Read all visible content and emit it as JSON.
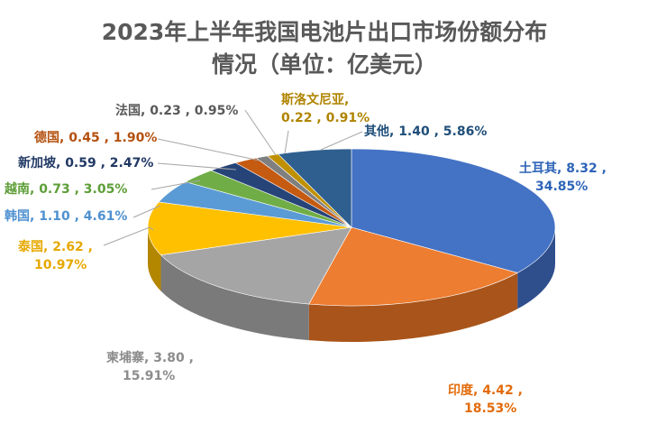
{
  "chart_data": {
    "type": "pie",
    "variant": "3d",
    "title": "2023年上半年我国电池片出口市场份额分布",
    "subtitle": "情况（单位：亿美元）",
    "legend": "none",
    "slices": [
      {
        "name": "土耳其",
        "value": 8.32,
        "percent": "34.85%",
        "label_line1": "土耳其, 8.32 ,",
        "label_line2": "34.85%",
        "color": "#4472C4",
        "side": "#2E4E8C",
        "label_color": "#2E64B8"
      },
      {
        "name": "印度",
        "value": 4.42,
        "percent": "18.53%",
        "label_line1": "印度, 4.42 ,",
        "label_line2": "18.53%",
        "color": "#ED7D31",
        "side": "#A9541A",
        "label_color": "#E26B0A"
      },
      {
        "name": "柬埔寨",
        "value": 3.8,
        "percent": "15.91%",
        "label_line1": "柬埔寨, 3.80 ,",
        "label_line2": "15.91%",
        "color": "#A5A5A5",
        "side": "#7A7A7A",
        "label_color": "#8C8C8C"
      },
      {
        "name": "泰国",
        "value": 2.62,
        "percent": "10.97%",
        "label_line1": "泰国, 2.62 ,",
        "label_line2": "10.97%",
        "color": "#FFC000",
        "side": "#B38600",
        "label_color": "#E6A800"
      },
      {
        "name": "韩国",
        "value": 1.1,
        "percent": "4.61%",
        "label_line1": "韩国, 1.10 , 4.61%",
        "label_line2": "",
        "color": "#5B9BD5",
        "side": "#3E74A6",
        "label_color": "#4E90D0"
      },
      {
        "name": "越南",
        "value": 0.73,
        "percent": "3.05%",
        "label_line1": "越南, 0.73 , 3.05%",
        "label_line2": "",
        "color": "#70AD47",
        "side": "#4E7E30",
        "label_color": "#5E9E38"
      },
      {
        "name": "新加坡",
        "value": 0.59,
        "percent": "2.47%",
        "label_line1": "新加坡, 0.59 , 2.47%",
        "label_line2": "",
        "color": "#264478",
        "side": "#172B4E",
        "label_color": "#203864"
      },
      {
        "name": "德国",
        "value": 0.45,
        "percent": "1.90%",
        "label_line1": "德国, 0.45 , 1.90%",
        "label_line2": "",
        "color": "#C55A11",
        "side": "#843C0C",
        "label_color": "#B4500E"
      },
      {
        "name": "法国",
        "value": 0.23,
        "percent": "0.95%",
        "label_line1": "法国, 0.23 , 0.95%",
        "label_line2": "",
        "color": "#7F7F7F",
        "side": "#595959",
        "label_color": "#595959"
      },
      {
        "name": "斯洛文尼亚",
        "value": 0.22,
        "percent": "0.91%",
        "label_line1": "斯洛文尼亚,",
        "label_line2": "0.22 , 0.91%",
        "color": "#BF9000",
        "side": "#806000",
        "label_color": "#B08400"
      },
      {
        "name": "其他",
        "value": 1.4,
        "percent": "5.86%",
        "label_line1": "其他, 1.40 , 5.86%",
        "label_line2": "",
        "color": "#2F5F8F",
        "side": "#1E3E5E",
        "label_color": "#1F4E79"
      }
    ]
  }
}
